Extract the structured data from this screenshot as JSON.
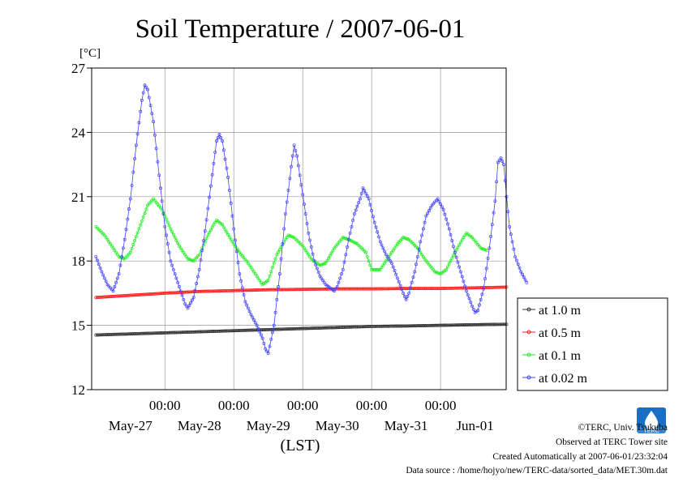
{
  "chart_data": {
    "type": "line",
    "title": "Soil Temperature / 2007-06-01",
    "ylabel": "[°C]",
    "xlabel": "(LST)",
    "ylim": [
      12,
      27
    ],
    "yticks": [
      12,
      15,
      18,
      21,
      24,
      27
    ],
    "xlim_hours": [
      0,
      144
    ],
    "time_ticks": [
      "00:00",
      "00:00",
      "00:00",
      "00:00",
      "00:00"
    ],
    "day_labels": [
      "May-27",
      "May-28",
      "May-29",
      "May-30",
      "May-31",
      "Jun-01"
    ],
    "grid": true,
    "legend_position": "right",
    "series": [
      {
        "name": "at 1.0 m",
        "color": "#333333",
        "points": [
          [
            0,
            14.55
          ],
          [
            12,
            14.6
          ],
          [
            24,
            14.65
          ],
          [
            36,
            14.7
          ],
          [
            48,
            14.75
          ],
          [
            60,
            14.8
          ],
          [
            72,
            14.85
          ],
          [
            84,
            14.9
          ],
          [
            96,
            14.95
          ],
          [
            108,
            14.97
          ],
          [
            120,
            15.0
          ],
          [
            132,
            15.03
          ],
          [
            143,
            15.05
          ]
        ]
      },
      {
        "name": "at 0.5 m",
        "color": "#ff2020",
        "points": [
          [
            0,
            16.3
          ],
          [
            12,
            16.4
          ],
          [
            24,
            16.5
          ],
          [
            36,
            16.58
          ],
          [
            48,
            16.62
          ],
          [
            60,
            16.66
          ],
          [
            72,
            16.68
          ],
          [
            84,
            16.7
          ],
          [
            96,
            16.7
          ],
          [
            108,
            16.72
          ],
          [
            120,
            16.72
          ],
          [
            132,
            16.75
          ],
          [
            143,
            16.78
          ]
        ]
      },
      {
        "name": "at 0.1 m",
        "color": "#22ee22",
        "points": [
          [
            0,
            19.6
          ],
          [
            3,
            19.2
          ],
          [
            6,
            18.6
          ],
          [
            8,
            18.2
          ],
          [
            10,
            18.1
          ],
          [
            12,
            18.4
          ],
          [
            15,
            19.5
          ],
          [
            18,
            20.6
          ],
          [
            20,
            20.9
          ],
          [
            23,
            20.4
          ],
          [
            26,
            19.5
          ],
          [
            29,
            18.7
          ],
          [
            32,
            18.1
          ],
          [
            34,
            18.0
          ],
          [
            36,
            18.3
          ],
          [
            39,
            19.2
          ],
          [
            41,
            19.7
          ],
          [
            42,
            19.9
          ],
          [
            44,
            19.7
          ],
          [
            47,
            19.0
          ],
          [
            50,
            18.4
          ],
          [
            53,
            17.9
          ],
          [
            56,
            17.3
          ],
          [
            58,
            16.9
          ],
          [
            60,
            17.1
          ],
          [
            63,
            18.3
          ],
          [
            66,
            19.0
          ],
          [
            67,
            19.2
          ],
          [
            69,
            19.1
          ],
          [
            72,
            18.7
          ],
          [
            75,
            18.1
          ],
          [
            78,
            17.8
          ],
          [
            80,
            17.9
          ],
          [
            83,
            18.6
          ],
          [
            86,
            19.1
          ],
          [
            88,
            19.0
          ],
          [
            91,
            18.8
          ],
          [
            94,
            18.4
          ],
          [
            96,
            17.6
          ],
          [
            99,
            17.6
          ],
          [
            102,
            18.2
          ],
          [
            105,
            18.8
          ],
          [
            107,
            19.1
          ],
          [
            109,
            19.0
          ],
          [
            112,
            18.6
          ],
          [
            115,
            18.0
          ],
          [
            118,
            17.5
          ],
          [
            120,
            17.4
          ],
          [
            122,
            17.6
          ],
          [
            125,
            18.4
          ],
          [
            128,
            19.1
          ],
          [
            129,
            19.3
          ],
          [
            131,
            19.1
          ],
          [
            134,
            18.6
          ],
          [
            136,
            18.5
          ]
        ]
      },
      {
        "name": "at 0.02 m",
        "color": "#4444ff",
        "points": [
          [
            0,
            18.2
          ],
          [
            2,
            17.5
          ],
          [
            4,
            16.9
          ],
          [
            6,
            16.6
          ],
          [
            8,
            17.4
          ],
          [
            10,
            19.0
          ],
          [
            12,
            20.9
          ],
          [
            14,
            23.4
          ],
          [
            16,
            25.5
          ],
          [
            17,
            26.2
          ],
          [
            18,
            26.0
          ],
          [
            20,
            24.5
          ],
          [
            22,
            22.0
          ],
          [
            24,
            19.6
          ],
          [
            26,
            18.0
          ],
          [
            28,
            17.2
          ],
          [
            30,
            16.4
          ],
          [
            31,
            16.0
          ],
          [
            32,
            15.8
          ],
          [
            34,
            16.3
          ],
          [
            36,
            17.6
          ],
          [
            38,
            19.4
          ],
          [
            40,
            21.5
          ],
          [
            42,
            23.6
          ],
          [
            43,
            23.9
          ],
          [
            44,
            23.6
          ],
          [
            46,
            21.9
          ],
          [
            48,
            19.5
          ],
          [
            50,
            17.4
          ],
          [
            52,
            16.1
          ],
          [
            54,
            15.5
          ],
          [
            56,
            15.0
          ],
          [
            58,
            14.4
          ],
          [
            59,
            13.9
          ],
          [
            60,
            13.7
          ],
          [
            62,
            15.0
          ],
          [
            64,
            17.4
          ],
          [
            66,
            20.2
          ],
          [
            68,
            22.4
          ],
          [
            69,
            23.4
          ],
          [
            70,
            22.9
          ],
          [
            72,
            21.1
          ],
          [
            74,
            19.3
          ],
          [
            76,
            18.0
          ],
          [
            78,
            17.3
          ],
          [
            80,
            16.9
          ],
          [
            82,
            16.7
          ],
          [
            83,
            16.6
          ],
          [
            84,
            16.8
          ],
          [
            86,
            17.6
          ],
          [
            88,
            19.0
          ],
          [
            90,
            20.2
          ],
          [
            92,
            20.9
          ],
          [
            93,
            21.4
          ],
          [
            95,
            20.9
          ],
          [
            97,
            19.8
          ],
          [
            99,
            18.9
          ],
          [
            101,
            18.3
          ],
          [
            103,
            17.9
          ],
          [
            105,
            17.2
          ],
          [
            107,
            16.5
          ],
          [
            108,
            16.2
          ],
          [
            109,
            16.5
          ],
          [
            111,
            17.5
          ],
          [
            113,
            18.9
          ],
          [
            115,
            20.1
          ],
          [
            117,
            20.6
          ],
          [
            119,
            20.9
          ],
          [
            121,
            20.4
          ],
          [
            123,
            19.5
          ],
          [
            125,
            18.4
          ],
          [
            127,
            17.5
          ],
          [
            129,
            16.6
          ],
          [
            131,
            15.9
          ],
          [
            132,
            15.6
          ],
          [
            133,
            15.7
          ],
          [
            135,
            16.7
          ],
          [
            137,
            18.6
          ],
          [
            139,
            20.8
          ],
          [
            140,
            22.6
          ],
          [
            141,
            22.8
          ],
          [
            142,
            22.5
          ],
          [
            143,
            21.0
          ],
          [
            144,
            19.6
          ],
          [
            146,
            18.2
          ],
          [
            148,
            17.5
          ],
          [
            150,
            17.0
          ]
        ]
      }
    ]
  },
  "footer": {
    "copyright": "©TERC, Univ. Tsukuba",
    "observed": "Observed at TERC Tower site",
    "created": "Created Automatically at 2007-06-01/23:32:04",
    "source": "Data source : /home/hojyo/new/TERC-data/sorted_data/MET.30m.dat"
  },
  "logo": {
    "text": "TERC",
    "color": "#1a6fc4"
  }
}
